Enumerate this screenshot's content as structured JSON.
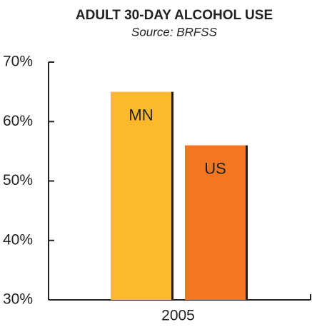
{
  "chart_data": {
    "type": "bar",
    "title": "ADULT 30-DAY ALCOHOL USE",
    "subtitle": "Source: BRFSS",
    "categories": [
      "2005"
    ],
    "series": [
      {
        "name": "MN",
        "color": "#fbb92e",
        "values": [
          65
        ]
      },
      {
        "name": "US",
        "color": "#f47621",
        "values": [
          56
        ]
      }
    ],
    "ylim": [
      30,
      70
    ],
    "yticks": [
      {
        "value": 30,
        "label": "30%"
      },
      {
        "value": 40,
        "label": "40%"
      },
      {
        "value": 50,
        "label": "50%"
      },
      {
        "value": 60,
        "label": "60%"
      },
      {
        "value": 70,
        "label": "70%"
      }
    ]
  }
}
